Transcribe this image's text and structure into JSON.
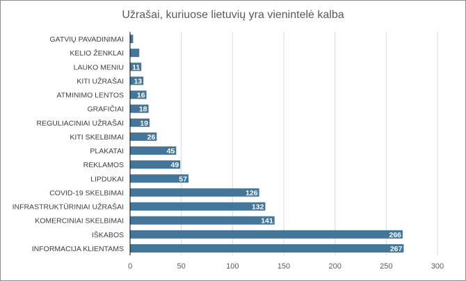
{
  "chart_data": {
    "type": "bar",
    "orientation": "horizontal",
    "title": "Užrašai, kuriuose lietuvių yra vienintelė kalba",
    "categories": [
      "GATVIŲ PAVADINIMAI",
      "KELIO ŽENKLAI",
      "LAUKO MENIU",
      "KITI UŽRAŠAI",
      "ATMINIMO LENTOS",
      "GRAFIČIAI",
      "REGULIACINIAI UŽRAŠAI",
      "KITI SKELBIMAI",
      "PLAKATAI",
      "REKLAMOS",
      "LIPDUKAI",
      "COVID-19 SKELBIMAI",
      "INFRASTRUKTŪRINIAI UŽRAŠAI",
      "KOMERCINIAI SKELBIMAI",
      "IŠKABOS",
      "INFORMACIJA KLIENTAMS"
    ],
    "values": [
      3,
      9,
      11,
      13,
      16,
      18,
      19,
      26,
      45,
      49,
      57,
      126,
      132,
      141,
      266,
      267
    ],
    "xlim": [
      0,
      300
    ],
    "xticks": [
      0,
      50,
      100,
      150,
      200,
      250,
      300
    ],
    "grid": true,
    "bar_color": "#44769a",
    "data_labels": true
  }
}
